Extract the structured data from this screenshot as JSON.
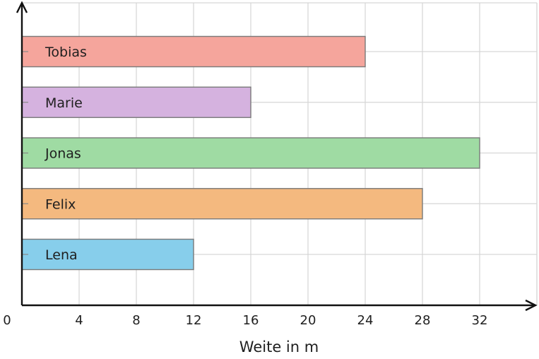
{
  "chart_data": {
    "type": "bar",
    "orientation": "horizontal",
    "categories": [
      "Lena",
      "Felix",
      "Jonas",
      "Marie",
      "Tobias"
    ],
    "values": [
      12,
      28,
      32,
      16,
      24
    ],
    "colors": [
      "#87ceeb",
      "#f4b97f",
      "#9fdba3",
      "#d5b2df",
      "#f5a59c"
    ],
    "xlabel": "Weite in m",
    "ylabel": "",
    "title": "",
    "xlim": [
      0,
      36
    ],
    "xticks": [
      0,
      4,
      8,
      12,
      16,
      20,
      24,
      28,
      32
    ],
    "grid": true,
    "legend": "none"
  }
}
